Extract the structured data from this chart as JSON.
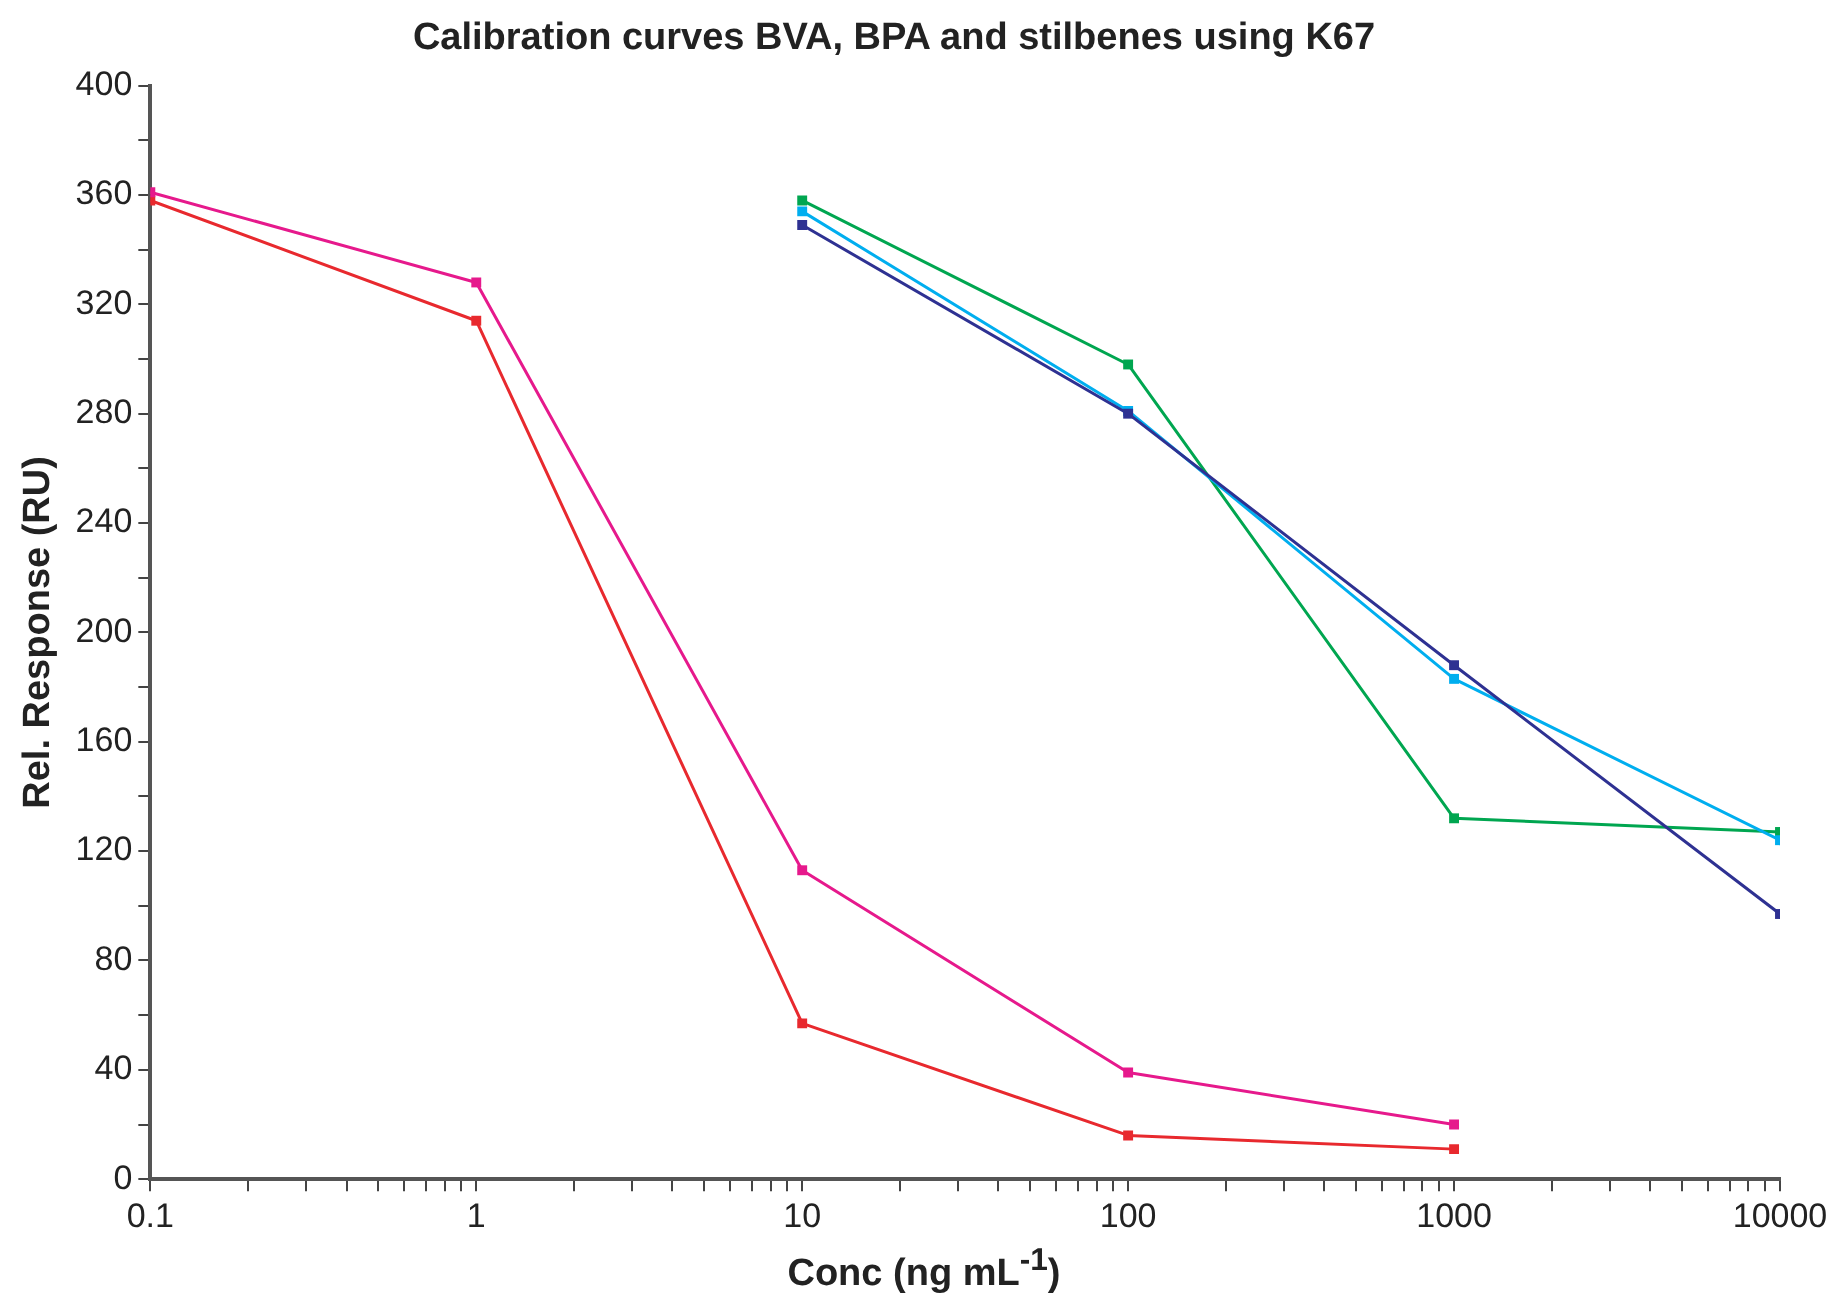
{
  "chart_data": {
    "type": "line",
    "title": "Calibration curves BVA, BPA and stilbenes using K67",
    "xlabel": "Conc (ng mL$^{-1}$)",
    "ylabel": "Rel. Response (RU)",
    "log": "x",
    "xlim": [
      0.1,
      10000
    ],
    "ylim": [
      0,
      400
    ],
    "xticks": [
      0.1,
      {
        "value": 0.2,
        "label": null
      },
      {
        "value": 0.3,
        "label": null
      },
      {
        "value": 0.4,
        "label": null
      },
      {
        "value": 0.5,
        "label": null
      },
      {
        "value": 0.6,
        "label": null
      },
      {
        "value": 0.7,
        "label": null
      },
      {
        "value": 0.8,
        "label": null
      },
      {
        "value": 0.9,
        "label": null
      },
      1,
      {
        "value": 2,
        "label": null
      },
      {
        "value": 3,
        "label": null
      },
      {
        "value": 4,
        "label": null
      },
      {
        "value": 5,
        "label": null
      },
      {
        "value": 6,
        "label": null
      },
      {
        "value": 7,
        "label": null
      },
      {
        "value": 8,
        "label": null
      },
      {
        "value": 9,
        "label": null
      },
      10,
      {
        "value": 20,
        "label": null
      },
      {
        "value": 30,
        "label": null
      },
      {
        "value": 40,
        "label": null
      },
      {
        "value": 50,
        "label": null
      },
      {
        "value": 60,
        "label": null
      },
      {
        "value": 70,
        "label": null
      },
      {
        "value": 80,
        "label": null
      },
      {
        "value": 90,
        "label": null
      },
      100,
      {
        "value": 200,
        "label": null
      },
      {
        "value": 300,
        "label": null
      },
      {
        "value": 400,
        "label": null
      },
      {
        "value": 500,
        "label": null
      },
      {
        "value": 600,
        "label": null
      },
      {
        "value": 700,
        "label": null
      },
      {
        "value": 800,
        "label": null
      },
      {
        "value": 900,
        "label": null
      },
      1000,
      {
        "value": 2000,
        "label": null
      },
      {
        "value": 3000,
        "label": null
      },
      {
        "value": 4000,
        "label": null
      },
      {
        "value": 5000,
        "label": null
      },
      {
        "value": 6000,
        "label": null
      },
      {
        "value": 7000,
        "label": null
      },
      {
        "value": 8000,
        "label": null
      },
      {
        "value": 9000,
        "label": null
      },
      10000
    ],
    "yticks": [
      0,
      {
        "value": 20,
        "label": null
      },
      40,
      {
        "value": 60,
        "label": null
      },
      80,
      {
        "value": 100,
        "label": null
      },
      120,
      {
        "value": 140,
        "label": null
      },
      160,
      {
        "value": 180,
        "label": null
      },
      200,
      {
        "value": 220,
        "label": null
      },
      240,
      {
        "value": 260,
        "label": null
      },
      280,
      {
        "value": 300,
        "label": null
      },
      320,
      {
        "value": 340,
        "label": null
      },
      360,
      {
        "value": 380,
        "label": null
      },
      400
    ],
    "marker": "square",
    "line_style": "solid",
    "grid": false,
    "legend": false,
    "series": [
      {
        "color": "#e8292e",
        "x": [
          0.1,
          1,
          10,
          100,
          1000
        ],
        "values": [
          358,
          314,
          57,
          16,
          11
        ]
      },
      {
        "color": "#e6198c",
        "x": [
          0.1,
          1,
          10,
          100,
          1000
        ],
        "values": [
          361,
          328,
          113,
          39,
          20
        ]
      },
      {
        "color": "#00a650",
        "x": [
          10,
          100,
          1000,
          10000
        ],
        "values": [
          358,
          298,
          132,
          127
        ]
      },
      {
        "color": "#00aeef",
        "x": [
          10,
          100,
          1000,
          10000
        ],
        "values": [
          354,
          281,
          183,
          124
        ]
      },
      {
        "color": "#2e3192",
        "x": [
          10,
          100,
          1000,
          10000
        ],
        "values": [
          349,
          280,
          188,
          97
        ]
      }
    ]
  }
}
